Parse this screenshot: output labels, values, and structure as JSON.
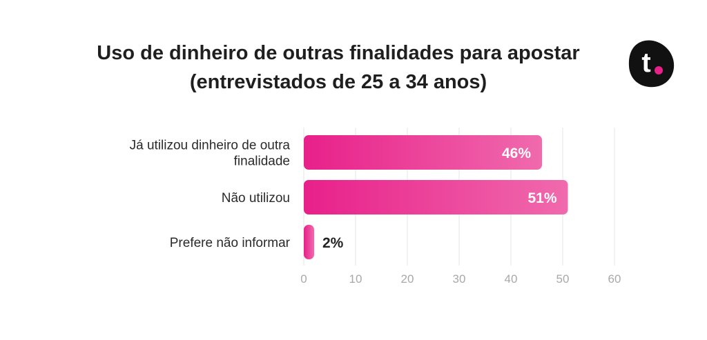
{
  "chart_data": {
    "type": "bar",
    "orientation": "horizontal",
    "title": [
      "Uso de dinheiro de outras finalidades para apostar",
      "(entrevistados de 25 a 34 anos)"
    ],
    "categories": [
      [
        "Já utilizou dinheiro de outra",
        "finalidade"
      ],
      [
        "Não utilizou"
      ],
      [
        "Prefere não informar"
      ]
    ],
    "values": [
      46,
      51,
      2
    ],
    "data_labels": [
      "46%",
      "51%",
      "2%"
    ],
    "xlim": [
      0,
      60
    ],
    "x_ticks": [
      0,
      10,
      20,
      30,
      40,
      50,
      60
    ],
    "grid": true,
    "colors": {
      "bar_start": "#e8208a",
      "bar_end": "#f06aad",
      "label_inside": "#ffffff",
      "label_outside": "#222222"
    }
  },
  "logo": {
    "letter": "t",
    "bg": "#111111",
    "dot": "#e8208a"
  }
}
